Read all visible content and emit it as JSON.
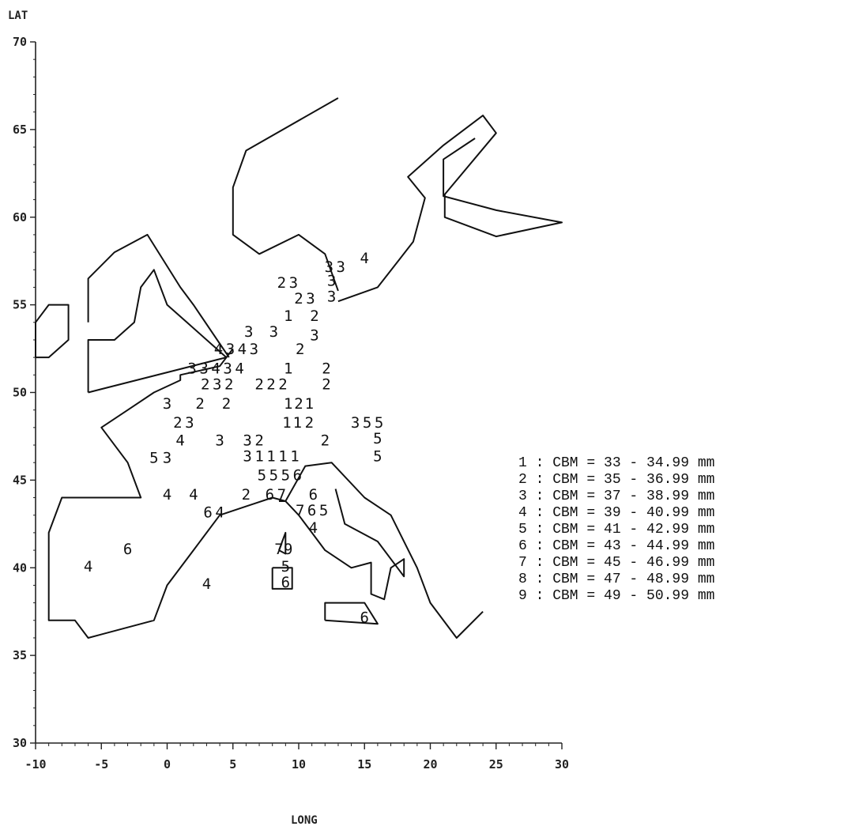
{
  "chart_data": {
    "type": "scatter",
    "xlabel": "LONG",
    "ylabel": "LAT",
    "xlim": [
      -10,
      30
    ],
    "ylim": [
      30,
      70
    ],
    "x_ticks": [
      "-10",
      "-5",
      "0",
      "5",
      "10",
      "15",
      "20",
      "25",
      "30"
    ],
    "y_ticks": [
      "30",
      "35",
      "40",
      "45",
      "50",
      "55",
      "60",
      "65",
      "70"
    ],
    "grid": false,
    "legend_position": "right",
    "marker_style": "digit",
    "legend": [
      {
        "code": "1",
        "text": "1 : CBM = 33 - 34.99 mm"
      },
      {
        "code": "2",
        "text": "2 : CBM = 35 - 36.99 mm"
      },
      {
        "code": "3",
        "text": "3 : CBM = 37 - 38.99 mm"
      },
      {
        "code": "4",
        "text": "4 : CBM = 39 - 40.99 mm"
      },
      {
        "code": "5",
        "text": "5 : CBM = 41 - 42.99 mm"
      },
      {
        "code": "6",
        "text": "6 : CBM = 43 - 44.99 mm"
      },
      {
        "code": "7",
        "text": "7 : CBM = 45 - 46.99 mm"
      },
      {
        "code": "8",
        "text": "8 : CBM = 47 - 48.99 mm"
      },
      {
        "code": "9",
        "text": "9 : CBM = 49 - 50.99 mm"
      }
    ],
    "coastlines": [
      [
        [
          13,
          66.8
        ],
        [
          6,
          63.8
        ],
        [
          5,
          61.7
        ],
        [
          5,
          59
        ],
        [
          7,
          57.9
        ],
        [
          10,
          59
        ],
        [
          12,
          57.9
        ],
        [
          13,
          55.8
        ]
      ],
      [
        [
          13,
          55.2
        ],
        [
          16,
          56
        ],
        [
          18.7,
          58.6
        ],
        [
          19.6,
          61.1
        ],
        [
          18.3,
          62.3
        ],
        [
          21,
          64.1
        ],
        [
          24,
          65.8
        ],
        [
          25,
          64.8
        ],
        [
          21.1,
          61.3
        ],
        [
          21.1,
          60
        ],
        [
          25,
          58.9
        ],
        [
          30,
          59.7
        ],
        [
          25,
          60.4
        ],
        [
          21,
          61.2
        ],
        [
          21,
          63.3
        ],
        [
          23.4,
          64.5
        ]
      ],
      [
        [
          -6,
          54
        ],
        [
          -6,
          56.5
        ],
        [
          -4,
          58
        ],
        [
          -1.5,
          59
        ],
        [
          1,
          56
        ],
        [
          2,
          55
        ],
        [
          4.7,
          52
        ]
      ],
      [
        [
          -6,
          50
        ],
        [
          4.5,
          52
        ],
        [
          1.5,
          54
        ],
        [
          0,
          55
        ],
        [
          -1,
          57
        ],
        [
          -2,
          56
        ],
        [
          -2.5,
          54
        ],
        [
          -4,
          53
        ],
        [
          -6,
          53
        ],
        [
          -6,
          50
        ]
      ],
      [
        [
          -10,
          52
        ],
        [
          -10,
          54
        ],
        [
          -9,
          55
        ],
        [
          -7.5,
          55
        ],
        [
          -7.5,
          53
        ],
        [
          -9,
          52
        ],
        [
          -10,
          52
        ]
      ],
      [
        [
          5,
          52.5
        ],
        [
          4,
          51.5
        ],
        [
          1,
          51
        ],
        [
          1,
          50.7
        ],
        [
          -1,
          50
        ],
        [
          -3,
          49
        ],
        [
          -5,
          48
        ],
        [
          -3,
          46
        ],
        [
          -2,
          44
        ],
        [
          -8,
          44
        ],
        [
          -9,
          42
        ],
        [
          -9,
          37
        ],
        [
          -7,
          37
        ],
        [
          -6,
          36
        ],
        [
          -1,
          37
        ],
        [
          0,
          39
        ],
        [
          2,
          41
        ],
        [
          4,
          43
        ],
        [
          6,
          43.5
        ],
        [
          8,
          44
        ],
        [
          9,
          43.8
        ],
        [
          10,
          43
        ],
        [
          11,
          42
        ],
        [
          12,
          41
        ],
        [
          14,
          40
        ],
        [
          15.5,
          40.3
        ],
        [
          15.5,
          38.5
        ],
        [
          16.5,
          38.2
        ],
        [
          17,
          40
        ],
        [
          18,
          40.5
        ],
        [
          18,
          39.5
        ],
        [
          16,
          41.5
        ],
        [
          13.5,
          42.5
        ],
        [
          12.8,
          44.5
        ]
      ],
      [
        [
          8.5,
          43.8
        ],
        [
          9,
          43.8
        ],
        [
          10.5,
          45.8
        ],
        [
          12.5,
          46
        ],
        [
          15,
          44
        ],
        [
          17,
          43
        ],
        [
          19,
          40
        ],
        [
          20,
          38
        ],
        [
          22,
          36
        ],
        [
          24,
          37.5
        ]
      ],
      [
        [
          12,
          37
        ],
        [
          12,
          38
        ],
        [
          15,
          38
        ],
        [
          16,
          36.8
        ],
        [
          12,
          37
        ]
      ],
      [
        [
          8.5,
          41
        ],
        [
          9,
          42
        ],
        [
          9,
          40.8
        ],
        [
          8.5,
          41
        ]
      ],
      [
        [
          8,
          40
        ],
        [
          8,
          38.8
        ],
        [
          9.5,
          38.8
        ],
        [
          9.5,
          40
        ],
        [
          8,
          40
        ]
      ]
    ],
    "points": [
      {
        "lon": 15,
        "lat": 57.7,
        "v": "4"
      },
      {
        "lon": 12.3,
        "lat": 57.2,
        "v": "3"
      },
      {
        "lon": 13.2,
        "lat": 57.2,
        "v": "3"
      },
      {
        "lon": 12.5,
        "lat": 56.4,
        "v": "3"
      },
      {
        "lon": 12.5,
        "lat": 55.5,
        "v": "3"
      },
      {
        "lon": 8.7,
        "lat": 56.3,
        "v": "2"
      },
      {
        "lon": 9.6,
        "lat": 56.3,
        "v": "3"
      },
      {
        "lon": 10,
        "lat": 55.4,
        "v": "2"
      },
      {
        "lon": 10.9,
        "lat": 55.4,
        "v": "3"
      },
      {
        "lon": 9.2,
        "lat": 54.4,
        "v": "1"
      },
      {
        "lon": 11.2,
        "lat": 54.4,
        "v": "2"
      },
      {
        "lon": 6.2,
        "lat": 53.5,
        "v": "3"
      },
      {
        "lon": 8.1,
        "lat": 53.5,
        "v": "3"
      },
      {
        "lon": 11.2,
        "lat": 53.3,
        "v": "3"
      },
      {
        "lon": 3.9,
        "lat": 52.5,
        "v": "4"
      },
      {
        "lon": 4.8,
        "lat": 52.5,
        "v": "3"
      },
      {
        "lon": 5.7,
        "lat": 52.5,
        "v": "4"
      },
      {
        "lon": 6.6,
        "lat": 52.5,
        "v": "3"
      },
      {
        "lon": 10.1,
        "lat": 52.5,
        "v": "2"
      },
      {
        "lon": 1.9,
        "lat": 51.4,
        "v": "3"
      },
      {
        "lon": 2.8,
        "lat": 51.4,
        "v": "3"
      },
      {
        "lon": 3.7,
        "lat": 51.4,
        "v": "4"
      },
      {
        "lon": 4.6,
        "lat": 51.4,
        "v": "3"
      },
      {
        "lon": 5.5,
        "lat": 51.4,
        "v": "4"
      },
      {
        "lon": 9.2,
        "lat": 51.4,
        "v": "1"
      },
      {
        "lon": 12.1,
        "lat": 51.4,
        "v": "2"
      },
      {
        "lon": 2.9,
        "lat": 50.5,
        "v": "2"
      },
      {
        "lon": 3.8,
        "lat": 50.5,
        "v": "3"
      },
      {
        "lon": 4.7,
        "lat": 50.5,
        "v": "2"
      },
      {
        "lon": 7,
        "lat": 50.5,
        "v": "2"
      },
      {
        "lon": 7.9,
        "lat": 50.5,
        "v": "2"
      },
      {
        "lon": 8.8,
        "lat": 50.5,
        "v": "2"
      },
      {
        "lon": 12.1,
        "lat": 50.5,
        "v": "2"
      },
      {
        "lon": 0,
        "lat": 49.4,
        "v": "3"
      },
      {
        "lon": 2.5,
        "lat": 49.4,
        "v": "2"
      },
      {
        "lon": 4.5,
        "lat": 49.4,
        "v": "2"
      },
      {
        "lon": 9.2,
        "lat": 49.4,
        "v": "1"
      },
      {
        "lon": 10,
        "lat": 49.4,
        "v": "2"
      },
      {
        "lon": 10.8,
        "lat": 49.4,
        "v": "1"
      },
      {
        "lon": 0.8,
        "lat": 48.3,
        "v": "2"
      },
      {
        "lon": 1.7,
        "lat": 48.3,
        "v": "3"
      },
      {
        "lon": 9.1,
        "lat": 48.3,
        "v": "1"
      },
      {
        "lon": 9.9,
        "lat": 48.3,
        "v": "1"
      },
      {
        "lon": 10.8,
        "lat": 48.3,
        "v": "2"
      },
      {
        "lon": 14.3,
        "lat": 48.3,
        "v": "3"
      },
      {
        "lon": 15.2,
        "lat": 48.3,
        "v": "5"
      },
      {
        "lon": 16.1,
        "lat": 48.3,
        "v": "5"
      },
      {
        "lon": 1,
        "lat": 47.3,
        "v": "4"
      },
      {
        "lon": 4,
        "lat": 47.3,
        "v": "3"
      },
      {
        "lon": 6.1,
        "lat": 47.3,
        "v": "3"
      },
      {
        "lon": 7,
        "lat": 47.3,
        "v": "2"
      },
      {
        "lon": 12,
        "lat": 47.3,
        "v": "2"
      },
      {
        "lon": 16,
        "lat": 47.4,
        "v": "5"
      },
      {
        "lon": -1,
        "lat": 46.3,
        "v": "5"
      },
      {
        "lon": 0,
        "lat": 46.3,
        "v": "3"
      },
      {
        "lon": 6.1,
        "lat": 46.4,
        "v": "3"
      },
      {
        "lon": 7,
        "lat": 46.4,
        "v": "1"
      },
      {
        "lon": 7.9,
        "lat": 46.4,
        "v": "1"
      },
      {
        "lon": 8.8,
        "lat": 46.4,
        "v": "1"
      },
      {
        "lon": 9.7,
        "lat": 46.4,
        "v": "1"
      },
      {
        "lon": 16,
        "lat": 46.4,
        "v": "5"
      },
      {
        "lon": 7.2,
        "lat": 45.3,
        "v": "5"
      },
      {
        "lon": 8.1,
        "lat": 45.3,
        "v": "5"
      },
      {
        "lon": 9,
        "lat": 45.3,
        "v": "5"
      },
      {
        "lon": 9.9,
        "lat": 45.3,
        "v": "6"
      },
      {
        "lon": 0,
        "lat": 44.2,
        "v": "4"
      },
      {
        "lon": 2,
        "lat": 44.2,
        "v": "4"
      },
      {
        "lon": 6,
        "lat": 44.2,
        "v": "2"
      },
      {
        "lon": 7.8,
        "lat": 44.2,
        "v": "6"
      },
      {
        "lon": 8.7,
        "lat": 44.2,
        "v": "7"
      },
      {
        "lon": 11.1,
        "lat": 44.2,
        "v": "6"
      },
      {
        "lon": 3.1,
        "lat": 43.2,
        "v": "6"
      },
      {
        "lon": 4,
        "lat": 43.2,
        "v": "4"
      },
      {
        "lon": 10.1,
        "lat": 43.3,
        "v": "7"
      },
      {
        "lon": 11,
        "lat": 43.3,
        "v": "6"
      },
      {
        "lon": 11.9,
        "lat": 43.3,
        "v": "5"
      },
      {
        "lon": 11.1,
        "lat": 42.3,
        "v": "4"
      },
      {
        "lon": -3,
        "lat": 41.1,
        "v": "6"
      },
      {
        "lon": 8.5,
        "lat": 41.1,
        "v": "7"
      },
      {
        "lon": 9.2,
        "lat": 41.1,
        "v": "9"
      },
      {
        "lon": -6,
        "lat": 40.1,
        "v": "4"
      },
      {
        "lon": 9,
        "lat": 40.1,
        "v": "5"
      },
      {
        "lon": 9,
        "lat": 39.2,
        "v": "6"
      },
      {
        "lon": 3,
        "lat": 39.1,
        "v": "4"
      },
      {
        "lon": 15,
        "lat": 37.2,
        "v": "6"
      }
    ]
  }
}
